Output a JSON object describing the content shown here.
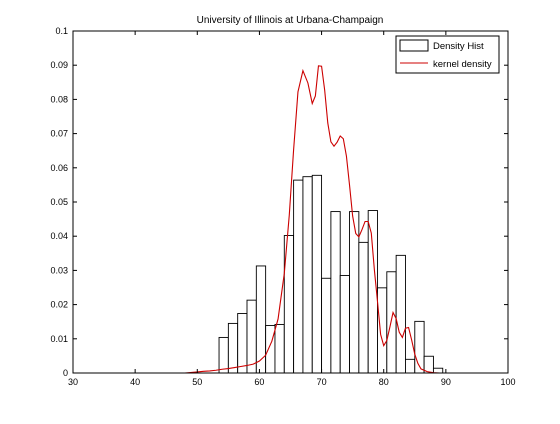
{
  "chart_data": {
    "type": "bar",
    "title": "University of Illinois at Urbana-Champaign",
    "xlabel": "",
    "ylabel": "",
    "xlim": [
      30,
      100
    ],
    "ylim": [
      0,
      0.1
    ],
    "xticks": [
      "30",
      "40",
      "50",
      "60",
      "70",
      "80",
      "90",
      "100"
    ],
    "yticks": [
      "0",
      "0.01",
      "0.02",
      "0.03",
      "0.04",
      "0.05",
      "0.06",
      "0.07",
      "0.08",
      "0.09",
      "0.1"
    ],
    "grid": false,
    "legend": {
      "position": "top-right",
      "entries": [
        "Density Hist",
        "kernel density"
      ]
    },
    "bin_width": 1.5,
    "series": [
      {
        "name": "Density Hist",
        "kind": "histogram",
        "color": "#000000",
        "bins": [
          {
            "start": 53.5,
            "value": 0.0104
          },
          {
            "start": 55.0,
            "value": 0.0145
          },
          {
            "start": 56.5,
            "value": 0.0174
          },
          {
            "start": 58.0,
            "value": 0.0213
          },
          {
            "start": 59.5,
            "value": 0.0313
          },
          {
            "start": 61.0,
            "value": 0.0139
          },
          {
            "start": 62.5,
            "value": 0.0142
          },
          {
            "start": 64.0,
            "value": 0.0402
          },
          {
            "start": 65.5,
            "value": 0.0564
          },
          {
            "start": 67.0,
            "value": 0.0574
          },
          {
            "start": 68.5,
            "value": 0.0578
          },
          {
            "start": 70.0,
            "value": 0.0277
          },
          {
            "start": 71.5,
            "value": 0.0472
          },
          {
            "start": 73.0,
            "value": 0.0285
          },
          {
            "start": 74.5,
            "value": 0.0472
          },
          {
            "start": 76.0,
            "value": 0.0382
          },
          {
            "start": 77.5,
            "value": 0.0475
          },
          {
            "start": 79.0,
            "value": 0.0249
          },
          {
            "start": 80.5,
            "value": 0.0296
          },
          {
            "start": 82.0,
            "value": 0.0344
          },
          {
            "start": 83.5,
            "value": 0.004
          },
          {
            "start": 85.0,
            "value": 0.0151
          },
          {
            "start": 86.5,
            "value": 0.0049
          },
          {
            "start": 88.0,
            "value": 0.0014
          }
        ]
      },
      {
        "name": "kernel density",
        "kind": "line",
        "color": "#cc0000",
        "x": [
          38.0,
          48.0,
          50.0,
          51.0,
          52.0,
          53.0,
          54.0,
          55.0,
          56.0,
          57.0,
          58.0,
          59.0,
          60.0,
          61.0,
          62.0,
          63.0,
          64.0,
          64.8,
          65.5,
          66.2,
          67.0,
          67.8,
          68.5,
          69.0,
          69.5,
          70.0,
          70.5,
          71.0,
          71.5,
          72.0,
          72.5,
          73.0,
          73.5,
          74.0,
          74.5,
          75.0,
          75.5,
          76.0,
          76.5,
          77.0,
          77.5,
          78.0,
          78.5,
          79.0,
          79.5,
          80.0,
          80.5,
          81.0,
          81.5,
          82.0,
          82.5,
          83.0,
          83.5,
          84.0,
          84.5,
          85.0,
          85.5,
          86.0,
          87.0,
          88.0,
          89.0,
          90.0,
          92.0,
          94.0,
          96.0
        ],
        "y": [
          0.0,
          0.0,
          0.0003,
          0.0005,
          0.0006,
          0.0008,
          0.0011,
          0.0013,
          0.0016,
          0.0019,
          0.0022,
          0.0026,
          0.0035,
          0.0052,
          0.0093,
          0.0158,
          0.0291,
          0.0461,
          0.0653,
          0.0822,
          0.0884,
          0.0848,
          0.0788,
          0.081,
          0.0898,
          0.0897,
          0.0827,
          0.0731,
          0.0676,
          0.0663,
          0.0675,
          0.0693,
          0.0685,
          0.0634,
          0.0549,
          0.0459,
          0.0408,
          0.0398,
          0.0419,
          0.0443,
          0.0443,
          0.0409,
          0.0301,
          0.0209,
          0.0113,
          0.008,
          0.0095,
          0.0135,
          0.0177,
          0.0159,
          0.0119,
          0.0104,
          0.0131,
          0.0133,
          0.0096,
          0.0055,
          0.0028,
          0.0012,
          0.0004,
          0.0001,
          0.0,
          0.0,
          0.0,
          0.0,
          0.0
        ]
      }
    ]
  }
}
